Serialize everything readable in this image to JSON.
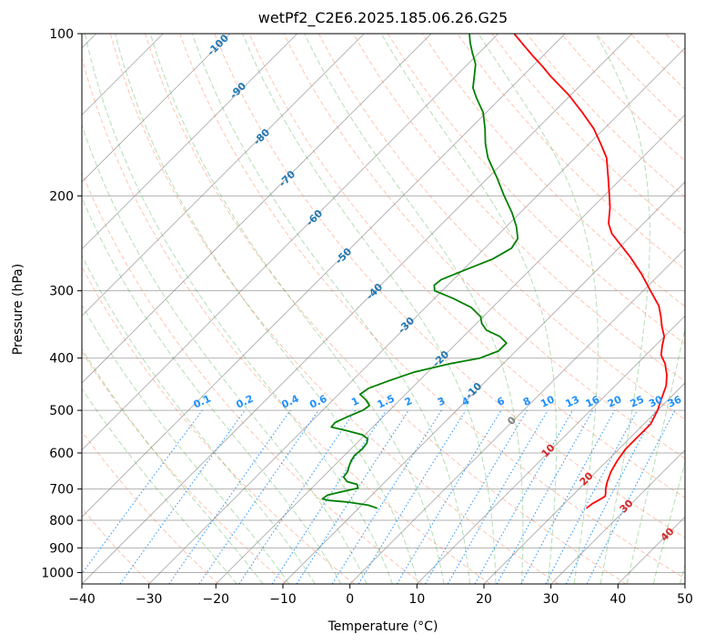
{
  "chart_data": {
    "type": "line",
    "subtype": "skew-T log-P diagram",
    "title": "wetPf2_C2E6.2025.185.06.26.G25",
    "xlabel": "Temperature (°C)",
    "ylabel": "Pressure (hPa)",
    "xlim": [
      -40,
      50
    ],
    "ylim": [
      1050,
      100
    ],
    "y_scale": "log",
    "x_ticks": [
      "−40",
      "−30",
      "−20",
      "−10",
      "0",
      "10",
      "20",
      "30",
      "40",
      "50"
    ],
    "x_tick_values": [
      -40,
      -30,
      -20,
      -10,
      0,
      10,
      20,
      30,
      40,
      50
    ],
    "y_ticks": [
      "100",
      "200",
      "300",
      "400",
      "500",
      "600",
      "700",
      "800",
      "900",
      "1000"
    ],
    "y_tick_values": [
      100,
      200,
      300,
      400,
      500,
      600,
      700,
      800,
      900,
      1000
    ],
    "grid": "pressure lines and skewed isotherms",
    "series": [
      {
        "color": "#ff0000",
        "points": [
          {
            "p": 760,
            "t": 24.0
          },
          {
            "p": 745,
            "t": 24.2
          },
          {
            "p": 735,
            "t": 24.6
          },
          {
            "p": 722,
            "t": 25.0
          },
          {
            "p": 712,
            "t": 24.6
          },
          {
            "p": 700,
            "t": 24.0
          },
          {
            "p": 680,
            "t": 23.2
          },
          {
            "p": 650,
            "t": 22.2
          },
          {
            "p": 620,
            "t": 21.5
          },
          {
            "p": 590,
            "t": 21.0
          },
          {
            "p": 560,
            "t": 21.0
          },
          {
            "p": 530,
            "t": 21.0
          },
          {
            "p": 500,
            "t": 20.0
          },
          {
            "p": 475,
            "t": 18.8
          },
          {
            "p": 450,
            "t": 17.6
          },
          {
            "p": 430,
            "t": 16.1
          },
          {
            "p": 410,
            "t": 14.2
          },
          {
            "p": 395,
            "t": 12.3
          },
          {
            "p": 380,
            "t": 11.1
          },
          {
            "p": 365,
            "t": 10.0
          },
          {
            "p": 350,
            "t": 8.2
          },
          {
            "p": 335,
            "t": 6.5
          },
          {
            "p": 320,
            "t": 4.6
          },
          {
            "p": 300,
            "t": 1.1
          },
          {
            "p": 280,
            "t": -2.6
          },
          {
            "p": 260,
            "t": -6.9
          },
          {
            "p": 245,
            "t": -10.6
          },
          {
            "p": 235,
            "t": -13.2
          },
          {
            "p": 225,
            "t": -15.2
          },
          {
            "p": 210,
            "t": -17.4
          },
          {
            "p": 200,
            "t": -19.2
          },
          {
            "p": 185,
            "t": -22.1
          },
          {
            "p": 170,
            "t": -25.3
          },
          {
            "p": 160,
            "t": -28.3
          },
          {
            "p": 150,
            "t": -31.6
          },
          {
            "p": 140,
            "t": -35.7
          },
          {
            "p": 130,
            "t": -40.3
          },
          {
            "p": 125,
            "t": -43.0
          },
          {
            "p": 120,
            "t": -45.8
          },
          {
            "p": 115,
            "t": -48.5
          },
          {
            "p": 110,
            "t": -51.5
          },
          {
            "p": 105,
            "t": -54.5
          },
          {
            "p": 100,
            "t": -57.6
          }
        ]
      },
      {
        "color": "#008000",
        "points": [
          {
            "p": 760,
            "t": -7.2
          },
          {
            "p": 750,
            "t": -9.0
          },
          {
            "p": 740,
            "t": -12.5
          },
          {
            "p": 735,
            "t": -15.5
          },
          {
            "p": 730,
            "t": -16.8
          },
          {
            "p": 718,
            "t": -16.6
          },
          {
            "p": 708,
            "t": -15.0
          },
          {
            "p": 697,
            "t": -13.1
          },
          {
            "p": 686,
            "t": -13.8
          },
          {
            "p": 678,
            "t": -15.7
          },
          {
            "p": 665,
            "t": -16.9
          },
          {
            "p": 650,
            "t": -17.1
          },
          {
            "p": 635,
            "t": -17.7
          },
          {
            "p": 620,
            "t": -18.2
          },
          {
            "p": 606,
            "t": -18.5
          },
          {
            "p": 590,
            "t": -18.3
          },
          {
            "p": 575,
            "t": -18.5
          },
          {
            "p": 565,
            "t": -19.0
          },
          {
            "p": 555,
            "t": -20.4
          },
          {
            "p": 545,
            "t": -23.5
          },
          {
            "p": 537,
            "t": -26.2
          },
          {
            "p": 527,
            "t": -26.3
          },
          {
            "p": 515,
            "t": -25.4
          },
          {
            "p": 500,
            "t": -24.0
          },
          {
            "p": 490,
            "t": -23.7
          },
          {
            "p": 478,
            "t": -25.1
          },
          {
            "p": 467,
            "t": -26.8
          },
          {
            "p": 455,
            "t": -26.4
          },
          {
            "p": 440,
            "t": -24.4
          },
          {
            "p": 425,
            "t": -22.1
          },
          {
            "p": 410,
            "t": -18.0
          },
          {
            "p": 400,
            "t": -14.3
          },
          {
            "p": 388,
            "t": -12.6
          },
          {
            "p": 375,
            "t": -12.6
          },
          {
            "p": 365,
            "t": -14.5
          },
          {
            "p": 355,
            "t": -17.5
          },
          {
            "p": 345,
            "t": -19.2
          },
          {
            "p": 335,
            "t": -20.4
          },
          {
            "p": 322,
            "t": -23.2
          },
          {
            "p": 310,
            "t": -27.2
          },
          {
            "p": 300,
            "t": -31.1
          },
          {
            "p": 293,
            "t": -32.0
          },
          {
            "p": 286,
            "t": -31.8
          },
          {
            "p": 275,
            "t": -29.8
          },
          {
            "p": 262,
            "t": -27.2
          },
          {
            "p": 250,
            "t": -26.0
          },
          {
            "p": 240,
            "t": -26.5
          },
          {
            "p": 228,
            "t": -28.5
          },
          {
            "p": 215,
            "t": -31.2
          },
          {
            "p": 200,
            "t": -34.9
          },
          {
            "p": 185,
            "t": -38.7
          },
          {
            "p": 170,
            "t": -43.0
          },
          {
            "p": 160,
            "t": -45.5
          },
          {
            "p": 150,
            "t": -47.8
          },
          {
            "p": 140,
            "t": -50.5
          },
          {
            "p": 132,
            "t": -53.5
          },
          {
            "p": 126,
            "t": -55.7
          },
          {
            "p": 120,
            "t": -57.2
          },
          {
            "p": 114,
            "t": -58.8
          },
          {
            "p": 108,
            "t": -61.2
          },
          {
            "p": 104,
            "t": -62.8
          },
          {
            "p": 100,
            "t": -64.3
          }
        ]
      }
    ],
    "dry_adiabat_labels": [
      "-100",
      "-90",
      "-80",
      "-70",
      "-60",
      "-50",
      "-40",
      "-30",
      "-20",
      "-10"
    ],
    "moist_adiabat_labels": [
      "0",
      "10",
      "20",
      "30",
      "40"
    ],
    "mixing_ratio_labels": [
      "0.1",
      "0.2",
      "0.4",
      "0.6",
      "1",
      "1.5",
      "2",
      "3",
      "4",
      "6",
      "8",
      "10",
      "13",
      "16",
      "20",
      "25",
      "30",
      "36"
    ],
    "colors": {
      "temperature": "#ff0000",
      "dewpoint": "#008000",
      "dry_adiabat": "#ff7f50",
      "moist_adiabat": "#2ca02c",
      "mixing_ratio": "#1e90ff",
      "isotherm": "#808080",
      "dry_label": "#1f77b4",
      "moist_label": "#d62728"
    }
  }
}
